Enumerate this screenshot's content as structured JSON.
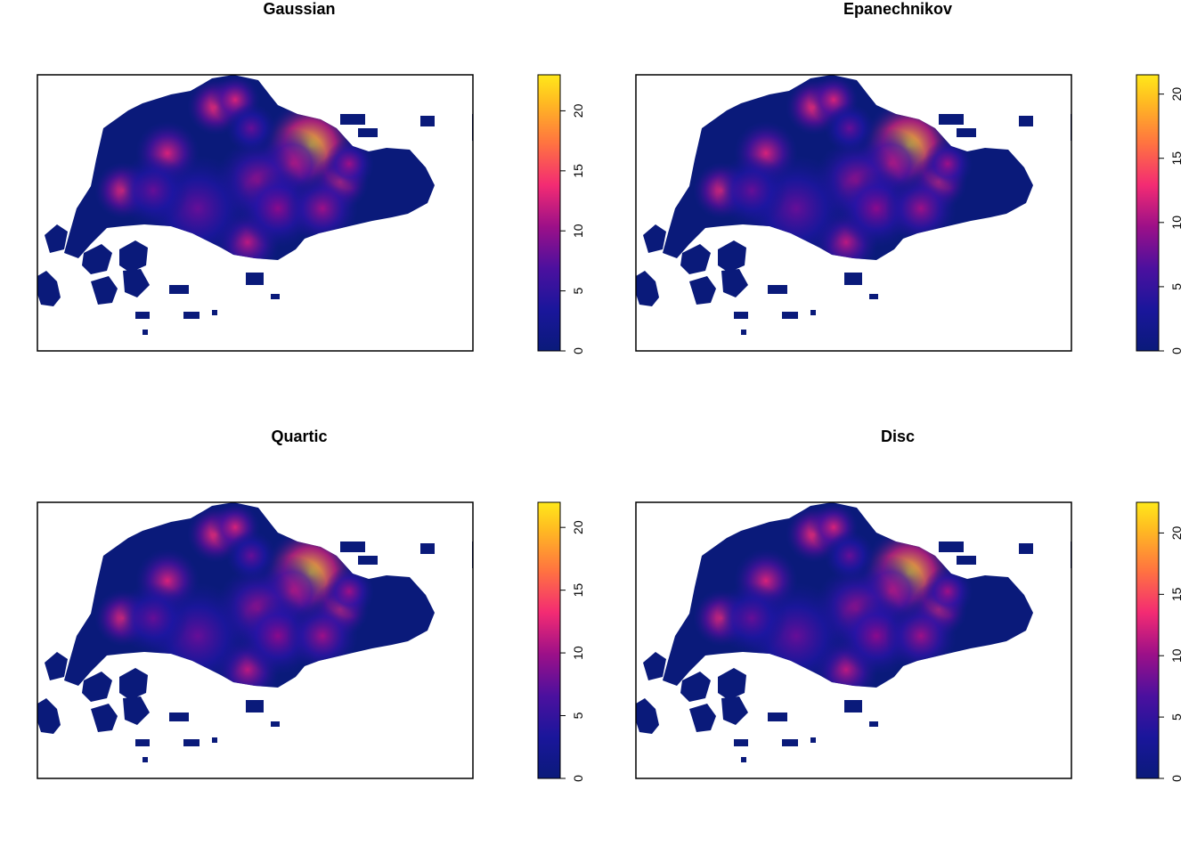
{
  "colors": {
    "low": "#0a1a7a",
    "mid": "#8a0a8c",
    "hot": "#ff2f70",
    "high": "#ffe81a",
    "frame": "#000000"
  },
  "chart_data": [
    {
      "type": "heatmap",
      "title": "Gaussian",
      "colorbar": {
        "range": [
          0,
          23
        ],
        "ticks": [
          "0",
          "5",
          "10",
          "15",
          "20"
        ],
        "tick_values": [
          0,
          5,
          10,
          15,
          20
        ]
      }
    },
    {
      "type": "heatmap",
      "title": "Epanechnikov",
      "colorbar": {
        "range": [
          0,
          21.5
        ],
        "ticks": [
          "0",
          "5",
          "10",
          "15",
          "20"
        ],
        "tick_values": [
          0,
          5,
          10,
          15,
          20
        ]
      }
    },
    {
      "type": "heatmap",
      "title": "Quartic",
      "colorbar": {
        "range": [
          0,
          22
        ],
        "ticks": [
          "0",
          "5",
          "10",
          "15",
          "20"
        ],
        "tick_values": [
          0,
          5,
          10,
          15,
          20
        ]
      }
    },
    {
      "type": "heatmap",
      "title": "Disc",
      "colorbar": {
        "range": [
          0,
          22.5
        ],
        "ticks": [
          "0",
          "5",
          "10",
          "15",
          "20"
        ],
        "tick_values": [
          0,
          5,
          10,
          15,
          20
        ]
      }
    }
  ]
}
